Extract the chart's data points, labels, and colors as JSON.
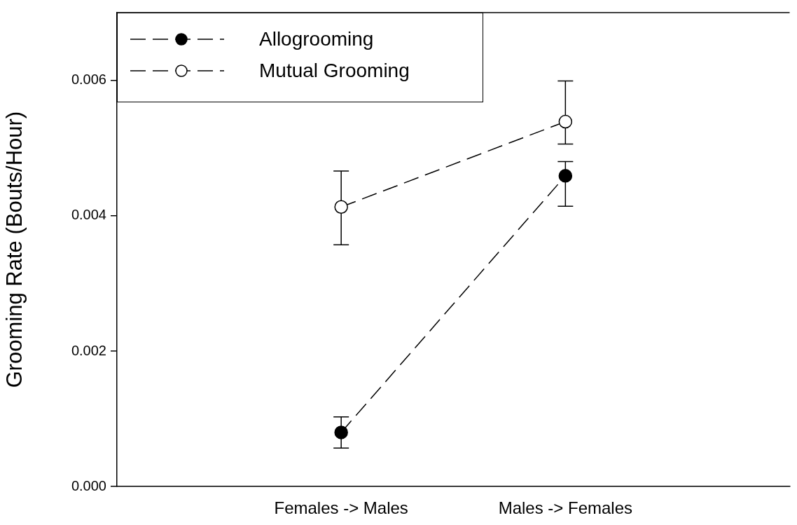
{
  "chart_data": {
    "type": "line",
    "ylabel": "Grooming Rate (Bouts/Hour)",
    "categories": [
      "Females -> Males",
      "Males -> Females"
    ],
    "series": [
      {
        "name": "Allogrooming",
        "color": "#000000",
        "values": [
          0.0008,
          0.00459
        ],
        "errors": [
          [
            0.00057,
            0.00103
          ],
          [
            0.00414,
            0.0048
          ]
        ]
      },
      {
        "name": "Mutual Grooming",
        "color": "#ffffff",
        "values": [
          0.00413,
          0.00539
        ],
        "errors": [
          [
            0.00357,
            0.00466
          ],
          [
            0.00506,
            0.00599
          ]
        ]
      }
    ],
    "ylim": [
      0,
      0.007
    ],
    "yticks": [
      {
        "value": 0,
        "label": "0.000"
      },
      {
        "value": 0.002,
        "label": "0.002"
      },
      {
        "value": 0.004,
        "label": "0.004"
      },
      {
        "value": 0.006,
        "label": "0.006"
      }
    ],
    "grid": false,
    "legend": "top left",
    "marker": "circle",
    "line_style": "dashed"
  }
}
